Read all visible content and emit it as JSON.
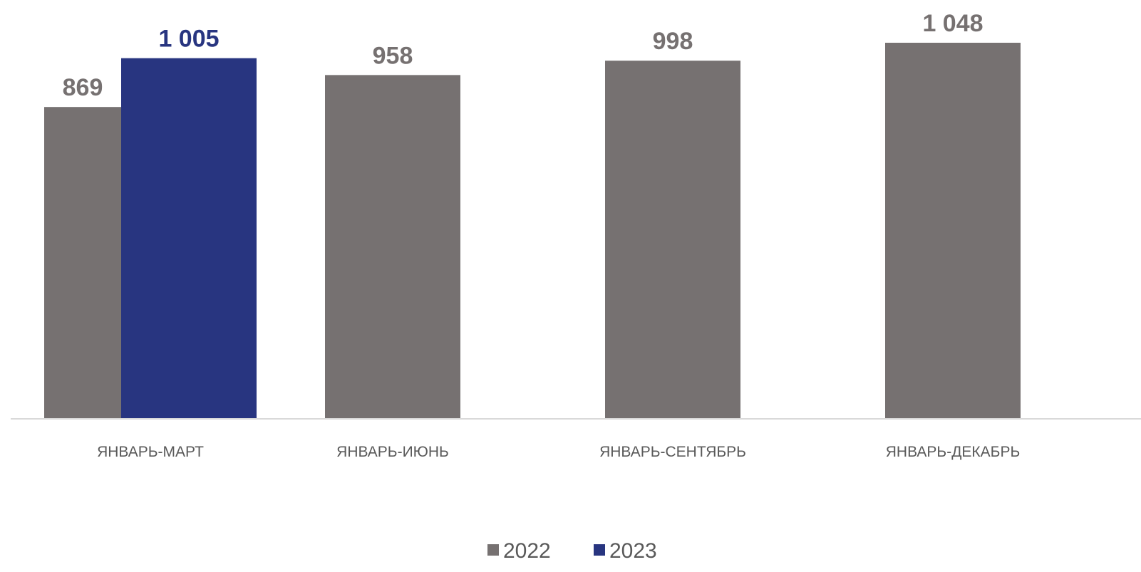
{
  "chart_data": {
    "type": "bar",
    "categories": [
      "ЯНВАРЬ-МАРТ",
      "ЯНВАРЬ-ИЮНЬ",
      "ЯНВАРЬ-СЕНТЯБРЬ",
      "ЯНВАРЬ-ДЕКАБРЬ"
    ],
    "series": [
      {
        "name": "2022",
        "color": "#767171",
        "values": [
          869,
          958,
          998,
          1048
        ],
        "labels": [
          "869",
          "958",
          "998",
          "1 048"
        ]
      },
      {
        "name": "2023",
        "color": "#283580",
        "values": [
          1005,
          null,
          null,
          null
        ],
        "labels": [
          "1 005",
          "",
          "",
          ""
        ]
      }
    ],
    "ylim": [
      0,
      1050
    ],
    "grid": false,
    "legend_position": "bottom"
  }
}
